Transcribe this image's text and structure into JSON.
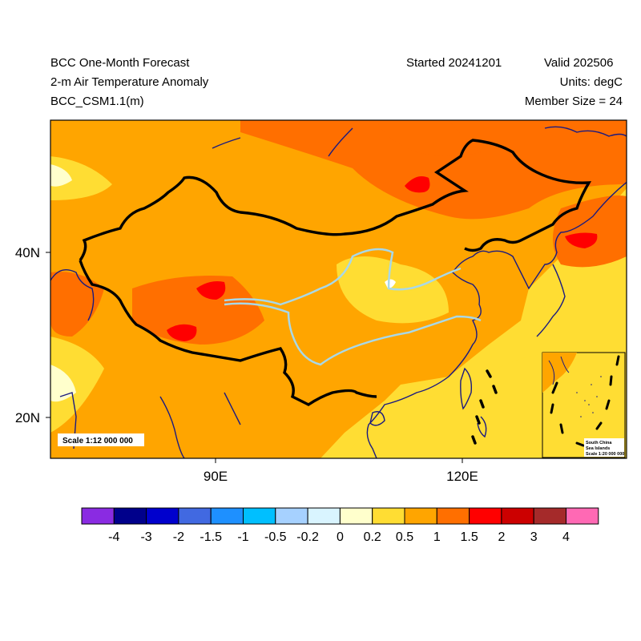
{
  "header": {
    "title": "BCC One-Month Forecast",
    "variable": "2-m Air Temperature Anomaly",
    "model": "BCC_CSM1.1(m)",
    "started": "Started 20241201",
    "valid": "Valid 202506",
    "units": "Units: degC",
    "members": "Member Size = 24"
  },
  "map": {
    "lat_labels": [
      "40N",
      "20N"
    ],
    "lon_labels": [
      "90E",
      "120E"
    ],
    "scale_label": "Scale 1:12 000 000",
    "inset_label_1": "South China",
    "inset_label_2": "Sea Islands",
    "inset_scale": "Scale 1:20 000 000"
  },
  "colorbar": {
    "labels": [
      "-4",
      "-3",
      "-2",
      "-1.5",
      "-1",
      "-0.5",
      "-0.2",
      "0",
      "0.2",
      "0.5",
      "1",
      "1.5",
      "2",
      "3",
      "4"
    ],
    "colors": [
      "#8a2be2",
      "#00008b",
      "#0000cd",
      "#4169e1",
      "#1e90ff",
      "#00bfff",
      "#a6d1ff",
      "#d9f4ff",
      "#ffffcc",
      "#ffdd33",
      "#ffa500",
      "#ff6f00",
      "#ff0000",
      "#cc0000",
      "#a52a2a",
      "#ff69b4"
    ]
  },
  "colors": {
    "land_border": "#000000",
    "coast": "#1a1a80",
    "river": "#a8d8e8"
  }
}
